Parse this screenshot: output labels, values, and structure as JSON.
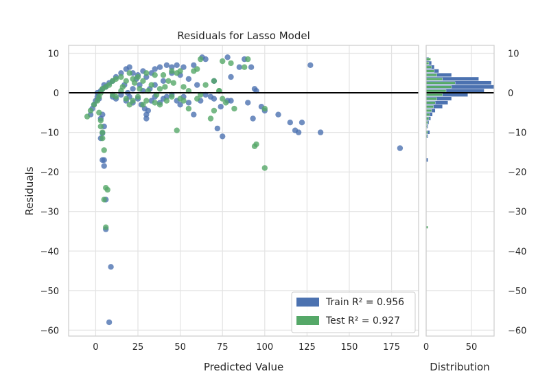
{
  "chart_data": {
    "type": "scatter",
    "title": "Residuals for Lasso Model",
    "xlabel": "Predicted Value",
    "ylabel": "Residuals",
    "xlim": [
      -16,
      191
    ],
    "ylim": [
      -61.5,
      12
    ],
    "x_ticks": [
      0,
      25,
      50,
      75,
      100,
      125,
      150,
      175
    ],
    "y_ticks": [
      10,
      0,
      -10,
      -20,
      -30,
      -40,
      -50,
      -60
    ],
    "grid": true,
    "zero_line": 0,
    "colors": {
      "train": "#4c72b0",
      "test": "#55a868",
      "zero_line": "#000000"
    },
    "legend": {
      "placement": "lower-right",
      "entries": [
        {
          "series": "train",
          "label": "Train R² = 0.956"
        },
        {
          "series": "test",
          "label": "Test R² = 0.927"
        }
      ]
    },
    "series": [
      {
        "name": "Train",
        "key": "train",
        "points": [
          [
            8,
            -58
          ],
          [
            9,
            -44
          ],
          [
            6,
            -34.5
          ],
          [
            6,
            -27
          ],
          [
            5,
            -18.5
          ],
          [
            4,
            -17
          ],
          [
            5,
            -17
          ],
          [
            3,
            -11.5
          ],
          [
            4,
            -10.2
          ],
          [
            5,
            -8.5
          ],
          [
            3,
            -6.5
          ],
          [
            4,
            -5.5
          ],
          [
            -3,
            -5.5
          ],
          [
            -2,
            -4
          ],
          [
            -1,
            -3
          ],
          [
            0,
            -2
          ],
          [
            1,
            -1
          ],
          [
            2,
            -1.5
          ],
          [
            1,
            0
          ],
          [
            3,
            0.5
          ],
          [
            4,
            1
          ],
          [
            5,
            2
          ],
          [
            6,
            1.5
          ],
          [
            8,
            2.5
          ],
          [
            10,
            3
          ],
          [
            12,
            4
          ],
          [
            15,
            5
          ],
          [
            18,
            6
          ],
          [
            20,
            6.5
          ],
          [
            22,
            5
          ],
          [
            25,
            4.5
          ],
          [
            28,
            5.5
          ],
          [
            30,
            4
          ],
          [
            33,
            5
          ],
          [
            35,
            6
          ],
          [
            38,
            6.5
          ],
          [
            42,
            7
          ],
          [
            45,
            6.5
          ],
          [
            48,
            7
          ],
          [
            52,
            6.5
          ],
          [
            58,
            7
          ],
          [
            63,
            9
          ],
          [
            65,
            8.5
          ],
          [
            78,
            9
          ],
          [
            85,
            6.5
          ],
          [
            88,
            8.5
          ],
          [
            92,
            6.5
          ],
          [
            127,
            7
          ],
          [
            10,
            -1
          ],
          [
            12,
            -1.5
          ],
          [
            15,
            -0.5
          ],
          [
            18,
            -2
          ],
          [
            20,
            -1
          ],
          [
            22,
            -2.5
          ],
          [
            25,
            -1.5
          ],
          [
            27,
            -3
          ],
          [
            29,
            -4
          ],
          [
            30,
            -5.5
          ],
          [
            30,
            -6.5
          ],
          [
            31,
            -4.5
          ],
          [
            33,
            -2
          ],
          [
            35,
            -1
          ],
          [
            38,
            -2.5
          ],
          [
            40,
            -1.5
          ],
          [
            42,
            -1
          ],
          [
            45,
            -0.5
          ],
          [
            48,
            -2
          ],
          [
            50,
            -3
          ],
          [
            52,
            -1
          ],
          [
            55,
            -2.5
          ],
          [
            58,
            -5.5
          ],
          [
            62,
            -2
          ],
          [
            65,
            -0.5
          ],
          [
            68,
            -1
          ],
          [
            70,
            -1.5
          ],
          [
            72,
            -9
          ],
          [
            74,
            -3.5
          ],
          [
            75,
            -11
          ],
          [
            78,
            -2
          ],
          [
            80,
            -2
          ],
          [
            90,
            -2.5
          ],
          [
            93,
            -6.5
          ],
          [
            95,
            0.5
          ],
          [
            94,
            1
          ],
          [
            98,
            -3.5
          ],
          [
            100,
            -4.5
          ],
          [
            108,
            -5.5
          ],
          [
            115,
            -7.5
          ],
          [
            118,
            -9.5
          ],
          [
            120,
            -10
          ],
          [
            122,
            -7.5
          ],
          [
            133,
            -10
          ],
          [
            180,
            -14
          ],
          [
            80,
            4
          ],
          [
            70,
            3
          ],
          [
            60,
            2
          ],
          [
            55,
            3.5
          ],
          [
            50,
            4.5
          ],
          [
            45,
            5
          ],
          [
            40,
            3
          ],
          [
            35,
            2
          ],
          [
            32,
            1
          ],
          [
            28,
            0.5
          ],
          [
            26,
            2
          ],
          [
            24,
            3.5
          ],
          [
            22,
            1
          ],
          [
            19,
            0
          ],
          [
            17,
            2
          ]
        ]
      },
      {
        "name": "Test",
        "key": "test",
        "points": [
          [
            6,
            -34
          ],
          [
            6,
            -24
          ],
          [
            7,
            -24.5
          ],
          [
            5,
            -27
          ],
          [
            5,
            -14.5
          ],
          [
            4,
            -11.5
          ],
          [
            4,
            -10
          ],
          [
            3,
            -8.5
          ],
          [
            3,
            -7
          ],
          [
            2,
            -5
          ],
          [
            -5,
            -6
          ],
          [
            -3,
            -4.5
          ],
          [
            -1,
            -3
          ],
          [
            1,
            -2
          ],
          [
            2,
            -1
          ],
          [
            3,
            0
          ],
          [
            4,
            1
          ],
          [
            6,
            1.5
          ],
          [
            8,
            2
          ],
          [
            10,
            3
          ],
          [
            12,
            3.5
          ],
          [
            15,
            4
          ],
          [
            18,
            3
          ],
          [
            20,
            5
          ],
          [
            22,
            3.5
          ],
          [
            25,
            4
          ],
          [
            28,
            3
          ],
          [
            30,
            5
          ],
          [
            33,
            2
          ],
          [
            35,
            4.5
          ],
          [
            38,
            1
          ],
          [
            40,
            4.5
          ],
          [
            43,
            3
          ],
          [
            45,
            5.5
          ],
          [
            48,
            5
          ],
          [
            50,
            5.5
          ],
          [
            52,
            1.5
          ],
          [
            55,
            0.5
          ],
          [
            58,
            5.5
          ],
          [
            60,
            6
          ],
          [
            62,
            8.5
          ],
          [
            65,
            2
          ],
          [
            70,
            3
          ],
          [
            73,
            0.5
          ],
          [
            75,
            8
          ],
          [
            80,
            7.5
          ],
          [
            88,
            6.5
          ],
          [
            90,
            8.5
          ],
          [
            10,
            -0.5
          ],
          [
            12,
            -1
          ],
          [
            15,
            0.5
          ],
          [
            18,
            -1.5
          ],
          [
            20,
            -3
          ],
          [
            22,
            -2
          ],
          [
            25,
            -1
          ],
          [
            28,
            -3
          ],
          [
            30,
            -2
          ],
          [
            35,
            -2.5
          ],
          [
            38,
            -3
          ],
          [
            42,
            -2
          ],
          [
            45,
            -1
          ],
          [
            48,
            -9.5
          ],
          [
            50,
            -1.5
          ],
          [
            52,
            -2
          ],
          [
            55,
            -4
          ],
          [
            60,
            -1.5
          ],
          [
            62,
            -0.5
          ],
          [
            68,
            -6.5
          ],
          [
            70,
            -4.5
          ],
          [
            73,
            0.5
          ],
          [
            75,
            -1.5
          ],
          [
            77,
            -2.5
          ],
          [
            82,
            -4
          ],
          [
            95,
            -13
          ],
          [
            94,
            -13.5
          ],
          [
            100,
            -19
          ],
          [
            100,
            -4
          ],
          [
            23,
            2.5
          ],
          [
            26,
            1
          ],
          [
            31,
            0.5
          ],
          [
            36,
            -0.5
          ],
          [
            41,
            1.5
          ],
          [
            46,
            2.5
          ],
          [
            16,
            1.5
          ]
        ]
      }
    ],
    "distribution": {
      "xlabel": "Distribution",
      "xlim": [
        0,
        75
      ],
      "x_ticks": [
        0,
        50
      ],
      "bins": [
        {
          "center": 8.5,
          "train": 3,
          "test": 5
        },
        {
          "center": 7.5,
          "train": 6,
          "test": 3
        },
        {
          "center": 6.5,
          "train": 9,
          "test": 6
        },
        {
          "center": 5.5,
          "train": 14,
          "test": 9
        },
        {
          "center": 4.5,
          "train": 28,
          "test": 12
        },
        {
          "center": 3.5,
          "train": 58,
          "test": 18
        },
        {
          "center": 2.5,
          "train": 72,
          "test": 32
        },
        {
          "center": 1.5,
          "train": 75,
          "test": 28
        },
        {
          "center": 0.5,
          "train": 64,
          "test": 22
        },
        {
          "center": -0.5,
          "train": 46,
          "test": 18
        },
        {
          "center": -1.5,
          "train": 28,
          "test": 12
        },
        {
          "center": -2.5,
          "train": 24,
          "test": 10
        },
        {
          "center": -3.5,
          "train": 18,
          "test": 8
        },
        {
          "center": -4.5,
          "train": 10,
          "test": 6
        },
        {
          "center": -5.5,
          "train": 7,
          "test": 4
        },
        {
          "center": -6.5,
          "train": 5,
          "test": 3
        },
        {
          "center": -7.5,
          "train": 3,
          "test": 2
        },
        {
          "center": -8.5,
          "train": 2,
          "test": 1
        },
        {
          "center": -10,
          "train": 4,
          "test": 2
        },
        {
          "center": -11,
          "train": 2,
          "test": 1
        },
        {
          "center": -17,
          "train": 2,
          "test": 0
        },
        {
          "center": -34,
          "train": 0,
          "test": 2
        }
      ]
    }
  }
}
